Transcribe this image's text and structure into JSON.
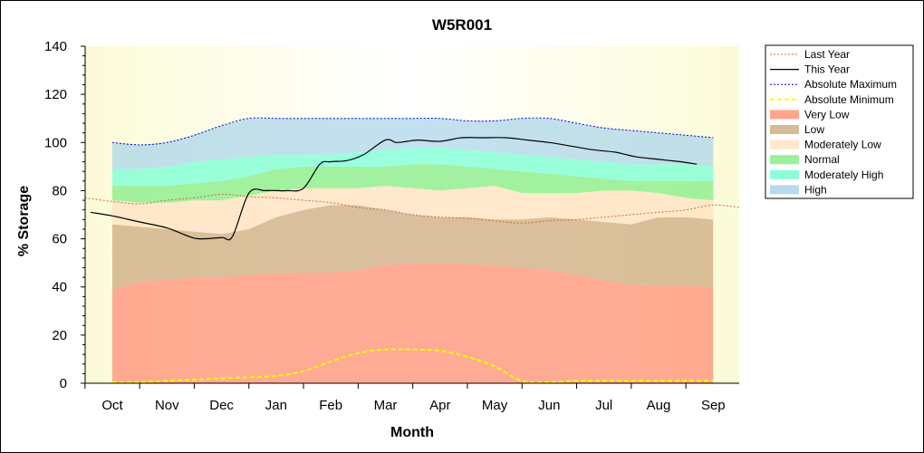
{
  "chart_data": {
    "type": "area",
    "title": "W5R001",
    "xlabel": "Month",
    "ylabel": "% Storage",
    "ylim": [
      0,
      140
    ],
    "yticks": [
      0,
      20,
      40,
      60,
      80,
      100,
      120,
      140
    ],
    "categories": [
      "Oct",
      "Nov",
      "Dec",
      "Jan",
      "Feb",
      "Mar",
      "Apr",
      "May",
      "Jun",
      "Jul",
      "Aug",
      "Sep"
    ],
    "x": [
      0,
      0.5,
      1,
      1.5,
      2,
      2.5,
      3,
      3.5,
      4,
      4.5,
      5,
      5.5,
      6,
      6.5,
      7,
      7.5,
      8,
      8.5,
      9,
      9.5,
      10,
      10.5,
      11
    ],
    "band_bounds": {
      "bound_very_low_top": [
        39,
        42,
        43,
        44,
        44,
        45,
        45.5,
        46,
        46,
        47,
        49,
        50,
        50,
        49.5,
        49,
        48,
        47,
        45,
        43,
        41,
        40.5,
        40.5,
        40
      ],
      "bound_low_top": [
        66,
        65,
        64,
        63,
        62,
        64,
        69,
        72,
        74,
        74,
        72,
        70,
        69,
        69,
        68,
        68,
        69,
        68,
        67,
        66,
        69,
        69,
        68
      ],
      "bound_modlow_top": [
        76,
        75,
        75,
        76,
        76,
        78,
        80,
        81,
        81,
        81,
        82,
        81,
        80,
        81,
        82,
        79,
        79,
        79,
        80,
        80,
        79,
        77,
        76
      ],
      "bound_normal_top": [
        82,
        82,
        82,
        83,
        84,
        86,
        89,
        90,
        90,
        90,
        90,
        91,
        91,
        90,
        89,
        88,
        87,
        86,
        85,
        84,
        84,
        84,
        84
      ],
      "bound_modhigh_top": [
        89,
        89,
        90,
        92,
        93,
        94,
        95,
        95,
        95,
        96,
        97,
        98,
        98,
        97,
        96,
        95,
        94,
        93,
        92,
        91,
        91,
        91,
        90
      ],
      "bound_high_top": [
        100,
        99,
        100,
        103,
        107,
        110,
        110,
        110,
        110,
        110,
        110,
        110,
        110,
        109,
        109,
        110,
        110,
        108,
        106,
        105,
        104,
        103,
        102
      ]
    },
    "series": [
      {
        "name": "Last Year",
        "x": [
          -0.5,
          0,
          0.5,
          1,
          1.5,
          2,
          2.5,
          3,
          3.5,
          4,
          4.5,
          5,
          5.5,
          6,
          6.5,
          7,
          7.5,
          8,
          8.5,
          9,
          9.5,
          10,
          10.5,
          11,
          11.5
        ],
        "values": [
          77,
          75.5,
          74.5,
          76,
          77,
          78.5,
          77.5,
          77,
          76,
          75,
          73,
          72,
          70,
          69,
          68.5,
          67.5,
          66.5,
          67.5,
          68,
          69,
          70,
          71,
          72,
          74,
          73
        ]
      },
      {
        "name": "This Year",
        "x": [
          -0.4,
          0,
          0.5,
          1,
          1.4,
          1.6,
          2,
          2.2,
          2.5,
          2.8,
          3,
          3.2,
          3.5,
          3.8,
          4,
          4.3,
          4.6,
          5,
          5.2,
          5.4,
          5.6,
          6,
          6.4,
          6.8,
          7.2,
          7.6,
          8,
          8.4,
          8.8,
          9.2,
          9.4,
          9.6,
          10,
          10.4,
          10.7
        ],
        "values": [
          71,
          69.5,
          67,
          64.5,
          61,
          60,
          60.5,
          61,
          79,
          80,
          80,
          80,
          81,
          91,
          92,
          92.5,
          95,
          101,
          100,
          100.5,
          101,
          100.5,
          102,
          102,
          102,
          101,
          100,
          98.5,
          97,
          96,
          95,
          94,
          93,
          92,
          91
        ]
      },
      {
        "name": "Absolute Maximum",
        "x": [
          0,
          0.5,
          1,
          1.5,
          2,
          2.5,
          3,
          3.5,
          4,
          4.5,
          5,
          5.5,
          6,
          6.5,
          7,
          7.5,
          8,
          8.5,
          9,
          9.5,
          10,
          10.5,
          11
        ],
        "values": [
          100,
          99,
          100,
          103,
          107,
          110,
          110,
          110,
          110,
          110,
          110,
          110,
          110,
          109,
          109,
          110,
          110,
          108,
          106,
          105,
          104,
          103,
          102
        ]
      },
      {
        "name": "Absolute Minimum",
        "x": [
          0,
          0.5,
          1,
          1.5,
          2,
          2.5,
          3,
          3.5,
          4,
          4.5,
          5,
          5.5,
          6,
          6.5,
          7,
          7.5,
          8,
          8.5,
          9,
          9.5,
          10,
          10.5,
          11
        ],
        "values": [
          0.5,
          0.5,
          1,
          1.5,
          2,
          2.5,
          3,
          5,
          9,
          12.5,
          14,
          14,
          13.5,
          11,
          7,
          1,
          0.5,
          1,
          1,
          1,
          1,
          1,
          1
        ]
      }
    ],
    "legend": [
      "Last Year",
      "This Year",
      "Absolute Maximum",
      "Absolute Minimum",
      "Very Low",
      "Low",
      "Moderately Low",
      "Normal",
      "Moderately High",
      "High"
    ],
    "legend_placement": "right",
    "grid": false
  },
  "colors": {
    "last_year": "#c87137",
    "this_year": "#000000",
    "abs_max": "#0000cc",
    "abs_min": "#ffff00",
    "very_low": "#ff9b83",
    "low": "#d2b48c",
    "moderately_low": "#ffe4c4",
    "normal": "#90ee90",
    "moderately_high": "#7fffd4",
    "high": "#aed6ea",
    "plot_bg": "#fdfde0"
  }
}
